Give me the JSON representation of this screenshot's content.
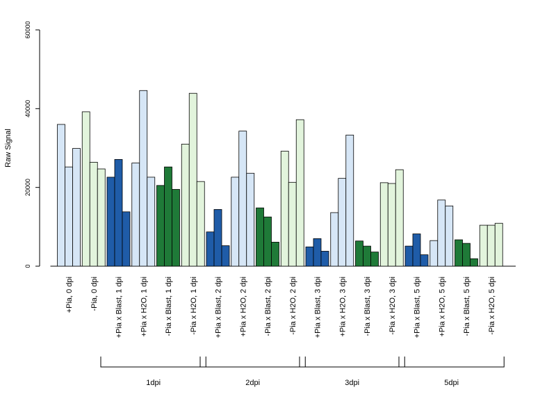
{
  "chart_data": {
    "type": "bar",
    "title": "",
    "xlabel": "",
    "ylabel": "Raw Signal",
    "ylim": [
      0,
      60000
    ],
    "yticks": [
      0,
      20000,
      40000,
      60000
    ],
    "grid": false,
    "categories": [
      "+Pia, 0 dpi",
      "-Pia, 0 dpi",
      "+Pia x Blast, 1 dpi",
      "+Pia x H2O, 1 dpi",
      "-Pia x Blast, 1 dpi",
      "-Pia x H2O, 1 dpi",
      "+Pia x Blast, 2 dpi",
      "+Pia x H2O, 2 dpi",
      "-Pia x Blast, 2 dpi",
      "-Pia x H2O, 2 dpi",
      "+Pia x Blast, 3 dpi",
      "+Pia x H2O, 3 dpi",
      "-Pia x Blast, 3 dpi",
      "-Pia x H2O, 3 dpi",
      "+Pia x Blast, 5 dpi",
      "+Pia x H2O, 5 dpi",
      "-Pia x Blast, 5 dpi",
      "-Pia x H2O, 5 dpi"
    ],
    "values": [
      [
        36000,
        25200,
        29900
      ],
      [
        39200,
        26400,
        24700
      ],
      [
        22600,
        27100,
        13800
      ],
      [
        26200,
        44600,
        22600
      ],
      [
        20500,
        25200,
        19500
      ],
      [
        31000,
        43900,
        21500
      ],
      [
        8700,
        14400,
        5200
      ],
      [
        22600,
        34300,
        23600
      ],
      [
        14800,
        12500,
        6100
      ],
      [
        29200,
        21300,
        37200
      ],
      [
        4900,
        7000,
        3800
      ],
      [
        13600,
        22300,
        33300
      ],
      [
        6400,
        5100,
        3600
      ],
      [
        21200,
        21000,
        24500
      ],
      [
        5100,
        8200,
        2900
      ],
      [
        6500,
        16800,
        15300
      ],
      [
        6700,
        5800,
        1900
      ],
      [
        10400,
        10400,
        10900
      ]
    ],
    "bar_colors": [
      "#d6e6f6",
      "#e2f4dc",
      "#1f5ca8",
      "#d6e6f6",
      "#1f7a38",
      "#e2f4dc",
      "#1f5ca8",
      "#d6e6f6",
      "#1f7a38",
      "#e2f4dc",
      "#1f5ca8",
      "#d6e6f6",
      "#1f7a38",
      "#e2f4dc",
      "#1f5ca8",
      "#d6e6f6",
      "#1f7a38",
      "#e2f4dc"
    ],
    "groups": [
      {
        "label": "1dpi",
        "from": 2,
        "to": 5
      },
      {
        "label": "2dpi",
        "from": 6,
        "to": 9
      },
      {
        "label": "3dpi",
        "from": 10,
        "to": 13
      },
      {
        "label": "5dpi",
        "from": 14,
        "to": 17
      }
    ]
  }
}
